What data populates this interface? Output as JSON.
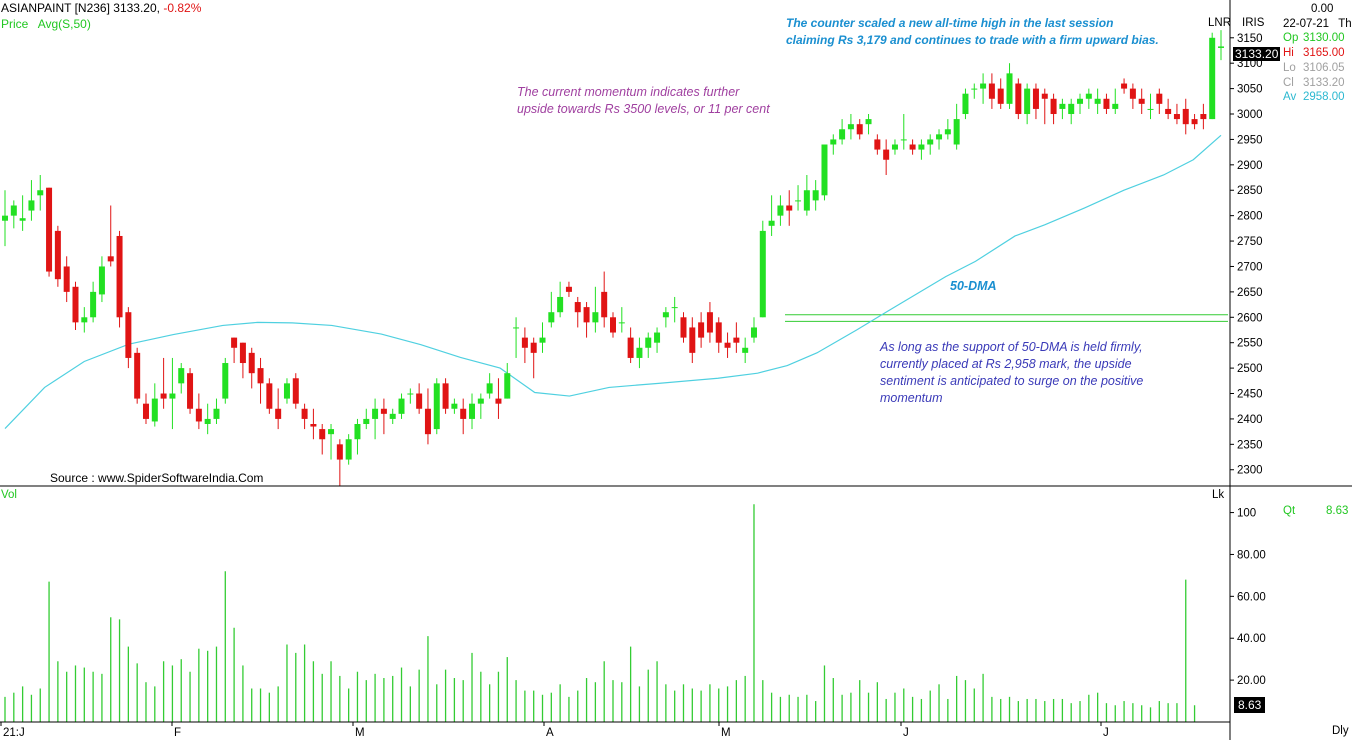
{
  "header": {
    "symbol": "ASIANPAINT [N236]",
    "price": "3133.20,",
    "change": "-0.82%",
    "legend_price": "Price",
    "legend_avg": "Avg(S,50)"
  },
  "right_panel": {
    "top_value": "0.00",
    "date": "22-07-21",
    "day": "Th",
    "lnr": "LNR",
    "iris": "IRIS",
    "price_tag": "3133.20",
    "rows": [
      {
        "label": "Op",
        "value": "3130.00"
      },
      {
        "label": "Hi",
        "value": "3165.00"
      },
      {
        "label": "Lo",
        "value": "3106.05"
      },
      {
        "label": "Cl",
        "value": "3133.20"
      },
      {
        "label": "Av",
        "value": "2958.00"
      }
    ],
    "vol_label": "Vol",
    "vol_unit": "Lk",
    "qt_label": "Qt",
    "qt_value": "8.63",
    "vol_tag": "8.63",
    "period": "Dly"
  },
  "annotations": {
    "top_right": [
      "The counter scaled a new all-time high in the last session",
      "claiming Rs 3,179 and continues to trade with a firm upward bias."
    ],
    "momentum": [
      "The current momentum indicates further",
      "upside towards Rs 3500 levels, or 11 per cent"
    ],
    "dma_label": "50-DMA",
    "support": [
      "As long as the support of 50-DMA is held firmly,",
      "currently placed at Rs 2,958 mark, the upside",
      "sentiment is anticipated to surge on the positive",
      "momentum"
    ],
    "source": "Source : www.SpiderSoftwareIndia.Com"
  },
  "colors": {
    "up": "#22e022",
    "down": "#e01414",
    "ma": "#4fd0e0",
    "volume": "#33cc33",
    "support_line": "#33cc33",
    "annotation_blue": "#1a8fd0",
    "annotation_purple": "#a040a0",
    "annotation_navy": "#3a3ab8"
  },
  "chart_data": {
    "type": "candlestick",
    "price_axis": {
      "ticks": [
        2300,
        2350,
        2400,
        2450,
        2500,
        2550,
        2600,
        2650,
        2700,
        2750,
        2800,
        2850,
        2900,
        2950,
        3000,
        3050,
        3100,
        3150
      ],
      "range": [
        2268,
        3185
      ]
    },
    "volume_axis": {
      "ticks": [
        20,
        40,
        60,
        80,
        100
      ],
      "tick_labels": [
        "20.00",
        "40.00",
        "60.00",
        "80.00",
        "100"
      ],
      "range": [
        0,
        106
      ],
      "unit": "Lk"
    },
    "x_labels": [
      "21:J",
      "F",
      "M",
      "A",
      "M",
      "J",
      "J"
    ],
    "support_levels": [
      2605,
      2592
    ],
    "candles": [
      [
        2790,
        2850,
        2740,
        2800
      ],
      [
        2800,
        2830,
        2775,
        2820
      ],
      [
        2790,
        2840,
        2770,
        2795
      ],
      [
        2810,
        2870,
        2790,
        2830
      ],
      [
        2840,
        2880,
        2810,
        2850
      ],
      [
        2855,
        2855,
        2680,
        2690
      ],
      [
        2770,
        2780,
        2660,
        2675
      ],
      [
        2700,
        2720,
        2630,
        2650
      ],
      [
        2660,
        2670,
        2575,
        2590
      ],
      [
        2590,
        2620,
        2570,
        2600
      ],
      [
        2600,
        2670,
        2590,
        2650
      ],
      [
        2645,
        2720,
        2630,
        2700
      ],
      [
        2720,
        2820,
        2700,
        2710
      ],
      [
        2760,
        2770,
        2580,
        2600
      ],
      [
        2610,
        2620,
        2500,
        2520
      ],
      [
        2530,
        2540,
        2430,
        2440
      ],
      [
        2430,
        2450,
        2390,
        2400
      ],
      [
        2395,
        2470,
        2385,
        2440
      ],
      [
        2450,
        2520,
        2420,
        2440
      ],
      [
        2440,
        2520,
        2380,
        2450
      ],
      [
        2470,
        2510,
        2450,
        2500
      ],
      [
        2490,
        2500,
        2410,
        2420
      ],
      [
        2420,
        2450,
        2380,
        2395
      ],
      [
        2390,
        2430,
        2370,
        2400
      ],
      [
        2400,
        2440,
        2390,
        2420
      ],
      [
        2440,
        2520,
        2430,
        2510
      ],
      [
        2560,
        2560,
        2510,
        2540
      ],
      [
        2550,
        2550,
        2480,
        2510
      ],
      [
        2530,
        2540,
        2460,
        2490
      ],
      [
        2500,
        2520,
        2430,
        2470
      ],
      [
        2470,
        2480,
        2410,
        2420
      ],
      [
        2420,
        2460,
        2380,
        2400
      ],
      [
        2440,
        2480,
        2430,
        2470
      ],
      [
        2480,
        2490,
        2420,
        2430
      ],
      [
        2420,
        2430,
        2380,
        2400
      ],
      [
        2390,
        2420,
        2360,
        2385
      ],
      [
        2380,
        2390,
        2330,
        2360
      ],
      [
        2370,
        2390,
        2320,
        2380
      ],
      [
        2350,
        2360,
        2268,
        2320
      ],
      [
        2320,
        2370,
        2310,
        2360
      ],
      [
        2360,
        2400,
        2330,
        2390
      ],
      [
        2390,
        2420,
        2380,
        2400
      ],
      [
        2400,
        2440,
        2360,
        2420
      ],
      [
        2420,
        2440,
        2370,
        2410
      ],
      [
        2400,
        2420,
        2390,
        2410
      ],
      [
        2410,
        2450,
        2400,
        2440
      ],
      [
        2450,
        2460,
        2430,
        2450
      ],
      [
        2450,
        2470,
        2410,
        2420
      ],
      [
        2420,
        2460,
        2350,
        2370
      ],
      [
        2380,
        2480,
        2370,
        2470
      ],
      [
        2470,
        2480,
        2410,
        2420
      ],
      [
        2420,
        2440,
        2410,
        2430
      ],
      [
        2420,
        2440,
        2370,
        2400
      ],
      [
        2400,
        2450,
        2380,
        2430
      ],
      [
        2430,
        2450,
        2400,
        2440
      ],
      [
        2450,
        2490,
        2440,
        2470
      ],
      [
        2440,
        2480,
        2400,
        2430
      ],
      [
        2440,
        2510,
        2440,
        2490
      ],
      [
        2580,
        2600,
        2520,
        2580
      ],
      [
        2560,
        2580,
        2510,
        2540
      ],
      [
        2550,
        2560,
        2480,
        2530
      ],
      [
        2550,
        2590,
        2530,
        2560
      ],
      [
        2590,
        2650,
        2580,
        2610
      ],
      [
        2610,
        2670,
        2600,
        2640
      ],
      [
        2660,
        2670,
        2640,
        2650
      ],
      [
        2630,
        2640,
        2580,
        2610
      ],
      [
        2620,
        2630,
        2560,
        2590
      ],
      [
        2590,
        2660,
        2570,
        2610
      ],
      [
        2650,
        2690,
        2580,
        2600
      ],
      [
        2600,
        2610,
        2560,
        2570
      ],
      [
        2590,
        2620,
        2570,
        2590
      ],
      [
        2560,
        2580,
        2510,
        2520
      ],
      [
        2520,
        2560,
        2500,
        2540
      ],
      [
        2540,
        2570,
        2520,
        2560
      ],
      [
        2550,
        2580,
        2530,
        2570
      ],
      [
        2600,
        2620,
        2580,
        2610
      ],
      [
        2620,
        2640,
        2590,
        2620
      ],
      [
        2600,
        2610,
        2550,
        2560
      ],
      [
        2580,
        2600,
        2510,
        2530
      ],
      [
        2590,
        2610,
        2540,
        2560
      ],
      [
        2610,
        2630,
        2550,
        2570
      ],
      [
        2590,
        2600,
        2530,
        2550
      ],
      [
        2550,
        2570,
        2520,
        2540
      ],
      [
        2560,
        2590,
        2530,
        2550
      ],
      [
        2530,
        2560,
        2510,
        2540
      ],
      [
        2560,
        2600,
        2550,
        2580
      ],
      [
        2600,
        2790,
        2600,
        2770
      ],
      [
        2780,
        2840,
        2760,
        2790
      ],
      [
        2800,
        2840,
        2780,
        2820
      ],
      [
        2820,
        2850,
        2780,
        2810
      ],
      [
        2830,
        2860,
        2810,
        2830
      ],
      [
        2810,
        2880,
        2800,
        2850
      ],
      [
        2830,
        2870,
        2810,
        2850
      ],
      [
        2840,
        2940,
        2830,
        2940
      ],
      [
        2940,
        2960,
        2920,
        2950
      ],
      [
        2950,
        2990,
        2940,
        2970
      ],
      [
        2970,
        3000,
        2950,
        2980
      ],
      [
        2980,
        2990,
        2950,
        2960
      ],
      [
        2980,
        3000,
        2960,
        2990
      ],
      [
        2950,
        2960,
        2920,
        2930
      ],
      [
        2930,
        2950,
        2880,
        2910
      ],
      [
        2930,
        2950,
        2920,
        2940
      ],
      [
        2950,
        3000,
        2930,
        2950
      ],
      [
        2940,
        2950,
        2920,
        2930
      ],
      [
        2930,
        2950,
        2910,
        2940
      ],
      [
        2940,
        2960,
        2920,
        2950
      ],
      [
        2950,
        2970,
        2930,
        2960
      ],
      [
        2960,
        2990,
        2950,
        2970
      ],
      [
        2940,
        3020,
        2930,
        2990
      ],
      [
        3000,
        3050,
        2990,
        3040
      ],
      [
        3050,
        3060,
        3030,
        3050
      ],
      [
        3050,
        3080,
        3020,
        3060
      ],
      [
        3060,
        3080,
        3010,
        3030
      ],
      [
        3050,
        3070,
        3010,
        3020
      ],
      [
        3020,
        3100,
        3010,
        3080
      ],
      [
        3060,
        3070,
        2990,
        3000
      ],
      [
        3000,
        3060,
        2980,
        3050
      ],
      [
        3050,
        3060,
        2990,
        3010
      ],
      [
        3040,
        3050,
        2980,
        3030
      ],
      [
        3030,
        3040,
        2980,
        3000
      ],
      [
        3010,
        3030,
        2990,
        3020
      ],
      [
        3000,
        3030,
        2980,
        3020
      ],
      [
        3020,
        3040,
        3000,
        3030
      ],
      [
        3030,
        3050,
        3010,
        3040
      ],
      [
        3020,
        3050,
        3000,
        3030
      ],
      [
        3030,
        3040,
        3000,
        3010
      ],
      [
        3010,
        3050,
        3000,
        3020
      ],
      [
        3060,
        3070,
        3040,
        3050
      ],
      [
        3050,
        3060,
        3010,
        3030
      ],
      [
        3030,
        3050,
        3000,
        3020
      ],
      [
        3010,
        3040,
        2990,
        3010
      ],
      [
        3040,
        3050,
        3000,
        3020
      ],
      [
        3010,
        3030,
        2990,
        3000
      ],
      [
        3000,
        3020,
        2980,
        2990
      ],
      [
        3010,
        3030,
        2960,
        2980
      ],
      [
        2990,
        3000,
        2970,
        2980
      ],
      [
        3000,
        3020,
        2970,
        2990
      ],
      [
        2990,
        3160,
        2990,
        3150
      ],
      [
        3130,
        3165,
        3106,
        3133
      ]
    ],
    "volume": [
      12,
      14,
      17,
      13,
      16,
      67,
      29,
      24,
      27,
      26,
      24,
      23,
      50,
      49,
      36,
      28,
      19,
      17,
      29,
      27,
      30,
      24,
      35,
      34,
      36,
      72,
      45,
      27,
      16,
      16,
      14,
      17,
      37,
      33,
      37,
      29,
      23,
      29,
      22,
      16,
      24,
      20,
      23,
      21,
      22,
      26,
      17,
      25,
      41,
      18,
      25,
      21,
      20,
      33,
      24,
      18,
      24,
      31,
      20,
      15,
      15,
      13,
      14,
      18,
      12,
      15,
      21,
      19,
      29,
      20,
      19,
      36,
      17,
      25,
      29,
      18,
      15,
      18,
      16,
      15,
      18,
      16,
      17,
      20,
      22,
      104,
      20,
      14,
      12,
      13,
      12,
      13,
      10,
      27,
      21,
      13,
      14,
      20,
      14,
      19,
      11,
      14,
      16,
      12,
      11,
      15,
      18,
      11,
      22,
      20,
      16,
      23,
      12,
      11,
      12,
      10,
      11,
      11,
      10,
      11,
      11,
      9,
      10,
      13,
      14,
      9,
      8,
      10,
      9,
      8,
      7,
      10,
      9,
      9,
      68,
      8
    ],
    "moving_average_50": [
      [
        0,
        2381
      ],
      [
        40,
        2462
      ],
      [
        80,
        2513
      ],
      [
        125,
        2547
      ],
      [
        170,
        2566
      ],
      [
        220,
        2584
      ],
      [
        255,
        2590
      ],
      [
        290,
        2589
      ],
      [
        330,
        2584
      ],
      [
        380,
        2567
      ],
      [
        420,
        2546
      ],
      [
        460,
        2521
      ],
      [
        500,
        2500
      ],
      [
        535,
        2452
      ],
      [
        570,
        2445
      ],
      [
        610,
        2462
      ],
      [
        660,
        2470
      ],
      [
        720,
        2480
      ],
      [
        760,
        2490
      ],
      [
        790,
        2505
      ],
      [
        820,
        2530
      ],
      [
        860,
        2575
      ],
      [
        900,
        2622
      ],
      [
        950,
        2680
      ],
      [
        980,
        2710
      ],
      [
        1020,
        2760
      ],
      [
        1050,
        2782
      ],
      [
        1090,
        2815
      ],
      [
        1130,
        2850
      ],
      [
        1170,
        2880
      ],
      [
        1200,
        2910
      ],
      [
        1228,
        2958
      ]
    ]
  }
}
